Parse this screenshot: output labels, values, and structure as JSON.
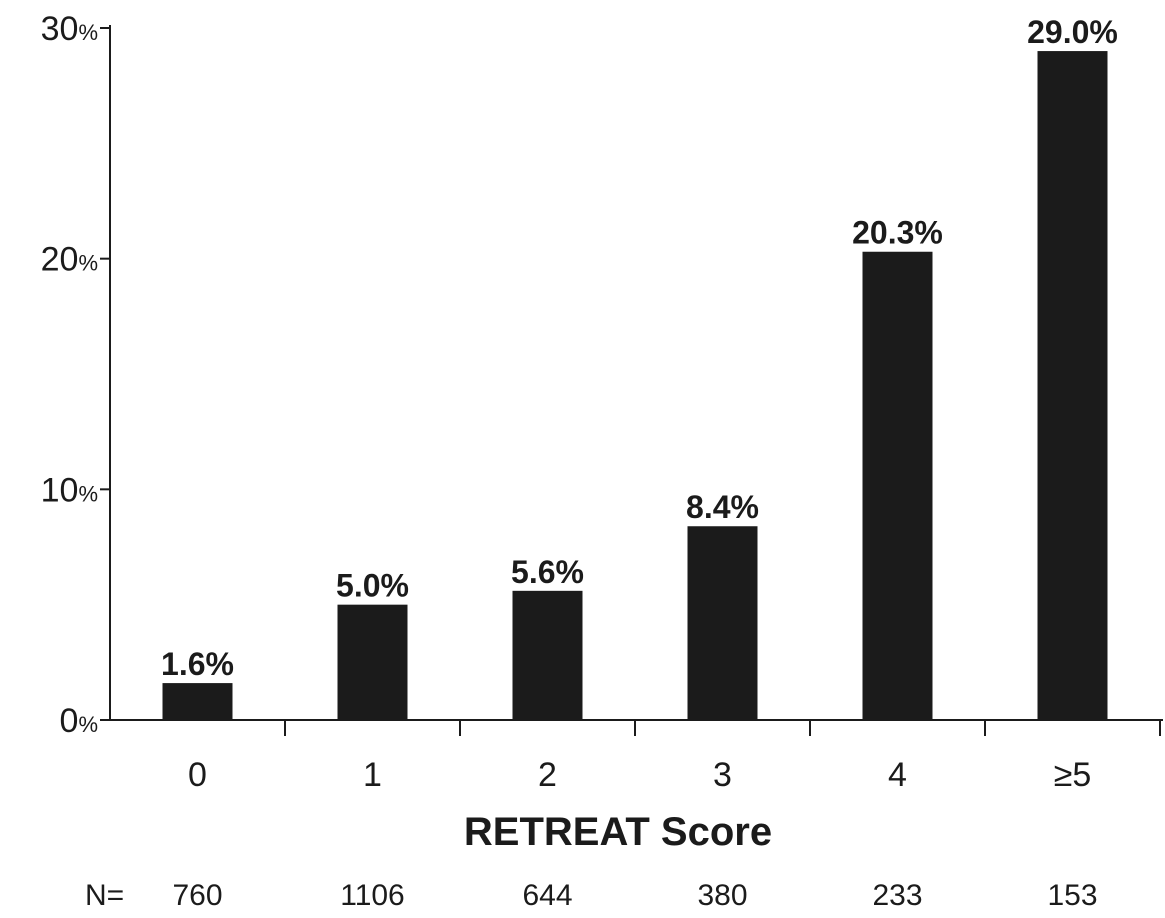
{
  "chart_data": {
    "type": "bar",
    "xlabel": "RETREAT Score",
    "ylabel": "",
    "title": "",
    "categories": [
      "0",
      "1",
      "2",
      "3",
      "4",
      "≥5"
    ],
    "values": [
      1.6,
      5.0,
      5.6,
      8.4,
      20.3,
      29.0
    ],
    "data_labels": [
      "1.6%",
      "5.0%",
      "5.6%",
      "8.4%",
      "20.3%",
      "29.0%"
    ],
    "ylim": [
      0,
      30
    ],
    "yticks": [
      {
        "value": 0,
        "num": "0",
        "unit": "%"
      },
      {
        "value": 10,
        "num": "10",
        "unit": "%"
      },
      {
        "value": 20,
        "num": "20",
        "unit": "%"
      },
      {
        "value": 30,
        "num": "30",
        "unit": "%"
      }
    ],
    "n_row": {
      "prefix": "N=",
      "values": [
        "760",
        "1106",
        "644",
        "380",
        "233",
        "153"
      ]
    },
    "grid": false,
    "legend": "none",
    "bar_color": "#1b1b1b"
  }
}
